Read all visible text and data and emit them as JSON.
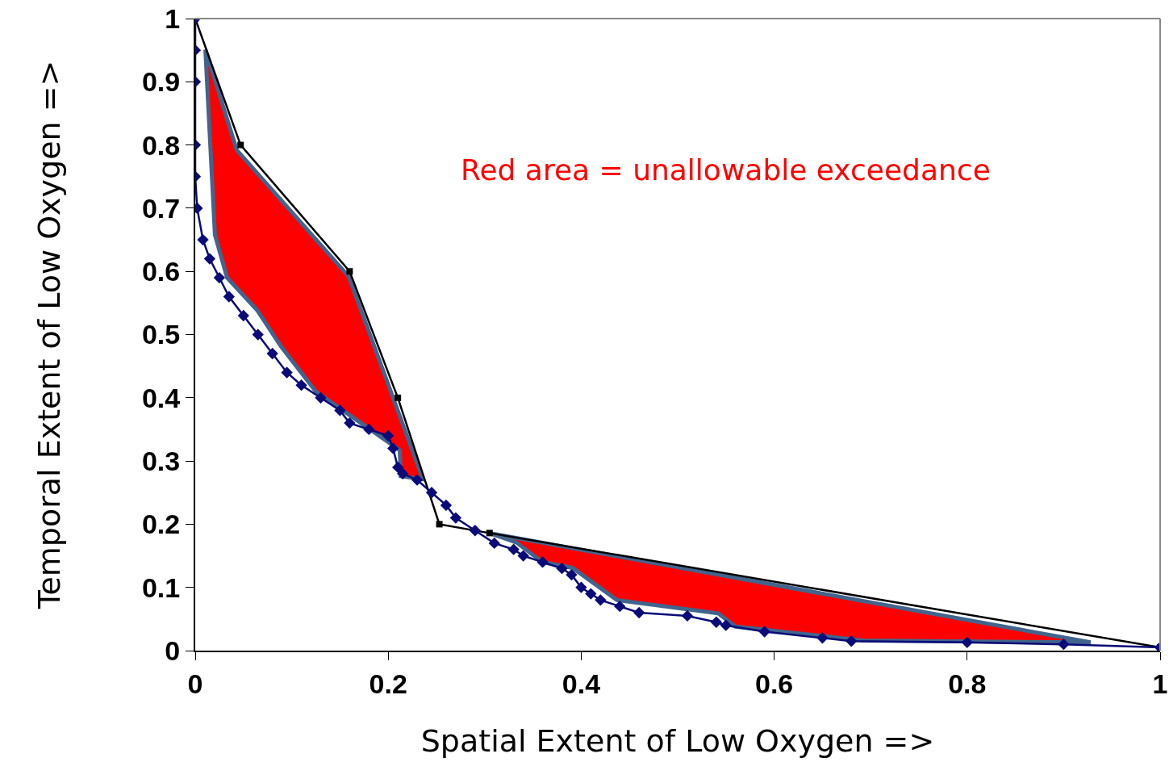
{
  "chart_data": {
    "type": "line",
    "xlabel": "Spatial Extent of Low Oxygen =>",
    "ylabel": "Temporal Extent of Low Oxygen =>",
    "annotations": [
      "Red area = unallowable exceedance"
    ],
    "xlim": [
      0,
      1
    ],
    "ylim": [
      0,
      1
    ],
    "xticks": [
      0,
      0.2,
      0.4,
      0.6,
      0.8,
      1
    ],
    "yticks": [
      0,
      0.1,
      0.2,
      0.3,
      0.4,
      0.5,
      0.6,
      0.7,
      0.8,
      0.9,
      1
    ],
    "grid": false,
    "line_style": "solid",
    "series": [
      {
        "type": "area",
        "color": "#ff0000",
        "x": [
          0.0105,
          0.043,
          0.159,
          0.236,
          0.213,
          0.212,
          0.125,
          0.089,
          0.064,
          0.033,
          0.0204,
          0.0105
        ],
        "values": [
          0.951,
          0.792,
          0.592,
          0.271,
          0.276,
          0.317,
          0.41,
          0.481,
          0.539,
          0.59,
          0.658,
          0.951
        ]
      },
      {
        "type": "area",
        "color": "#ff0000",
        "x": [
          0.305,
          0.928,
          0.692,
          0.56,
          0.542,
          0.437,
          0.391,
          0.36,
          0.333,
          0.305
        ],
        "values": [
          0.186,
          0.013,
          0.016,
          0.038,
          0.059,
          0.08,
          0.131,
          0.14,
          0.171,
          0.186
        ]
      },
      {
        "color": "#000000",
        "marker": "square",
        "x": [
          0,
          0.047,
          0.16,
          0.21,
          0.253,
          0.305,
          1
        ],
        "values": [
          1,
          0.8,
          0.6,
          0.4,
          0.2,
          0.186,
          0.005
        ]
      },
      {
        "color": "#0a0a78",
        "marker": "diamond",
        "x": [
          0,
          0,
          0,
          0,
          0,
          0.002,
          0.008,
          0.015,
          0.025,
          0.035,
          0.05,
          0.065,
          0.08,
          0.095,
          0.11,
          0.13,
          0.15,
          0.16,
          0.18,
          0.2,
          0.205,
          0.21,
          0.215,
          0.23,
          0.245,
          0.26,
          0.27,
          0.29,
          0.31,
          0.33,
          0.34,
          0.36,
          0.38,
          0.39,
          0.4,
          0.41,
          0.42,
          0.44,
          0.46,
          0.51,
          0.54,
          0.55,
          0.59,
          0.65,
          0.68,
          0.8,
          0.9,
          1
        ],
        "values": [
          1,
          0.95,
          0.9,
          0.8,
          0.75,
          0.7,
          0.65,
          0.62,
          0.59,
          0.56,
          0.53,
          0.5,
          0.47,
          0.44,
          0.42,
          0.4,
          0.38,
          0.36,
          0.35,
          0.34,
          0.32,
          0.29,
          0.28,
          0.27,
          0.25,
          0.23,
          0.21,
          0.19,
          0.17,
          0.16,
          0.15,
          0.14,
          0.13,
          0.12,
          0.1,
          0.09,
          0.08,
          0.07,
          0.06,
          0.055,
          0.045,
          0.04,
          0.03,
          0.02,
          0.015,
          0.013,
          0.01,
          0.005
        ]
      }
    ]
  }
}
